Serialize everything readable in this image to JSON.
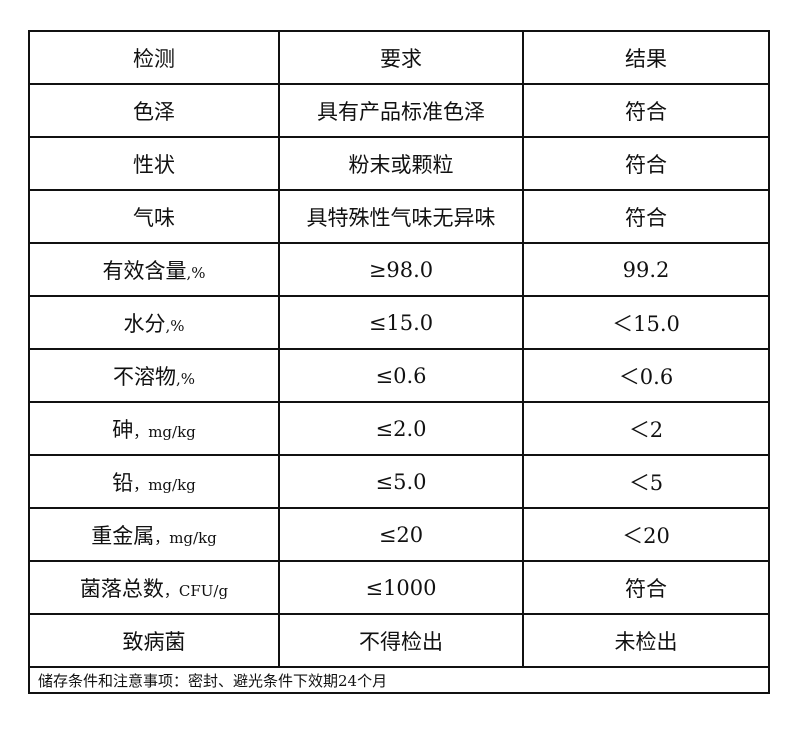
{
  "header": [
    "检测",
    "要求",
    "结果"
  ],
  "rows": [
    {
      "item": "色泽",
      "unit": "",
      "requirement": "具有产品标准色泽",
      "result": "符合"
    },
    {
      "item": "性状",
      "unit": "",
      "requirement": "粉末或颗粒",
      "result": "符合"
    },
    {
      "item": "气味",
      "unit": "",
      "requirement": "具特殊性气味无异味",
      "result": "符合"
    },
    {
      "item": "有效含量",
      "unit": ",%",
      "requirement": "≥98.0",
      "result": "99.2"
    },
    {
      "item": "水分",
      "unit": ",%",
      "requirement": "≤15.0",
      "result": "＜15.0"
    },
    {
      "item": "不溶物",
      "unit": ",%",
      "requirement": "≤0.6",
      "result": "＜0.6"
    },
    {
      "item": "砷",
      "unit": "，mg/kg",
      "requirement": "≤2.0",
      "result": "＜2"
    },
    {
      "item": "铅",
      "unit": "，mg/kg",
      "requirement": "≤5.0",
      "result": "＜5"
    },
    {
      "item": "重金属",
      "unit": "，mg/kg",
      "requirement": "≤20",
      "result": "＜20"
    },
    {
      "item": "菌落总数",
      "unit": "，CFU/g",
      "requirement": "≤1000",
      "result": "符合"
    },
    {
      "item": "致病菌",
      "unit": "",
      "requirement": "不得检出",
      "result": "未检出"
    }
  ],
  "footer": "储存条件和注意事项：密封、避光条件下效期24个月"
}
